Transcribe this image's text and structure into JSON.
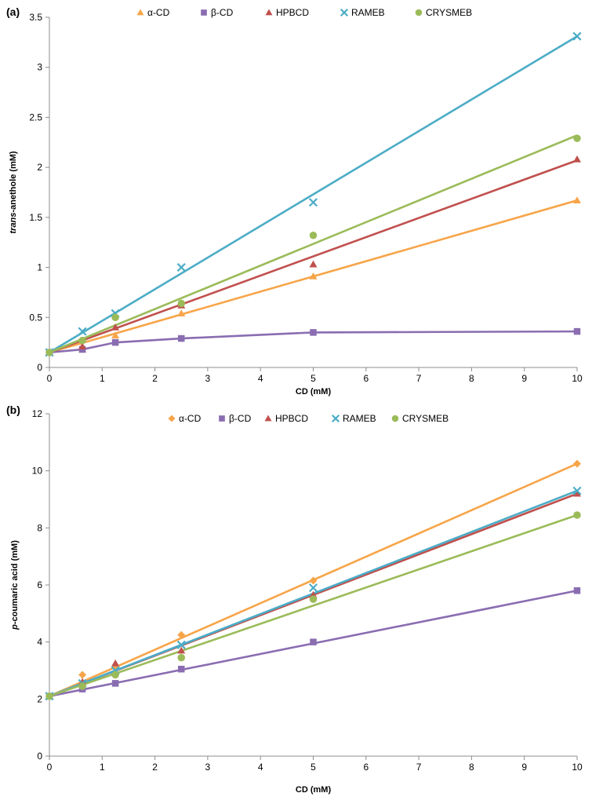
{
  "chart_data": [
    {
      "type": "scatter",
      "panel_label": "(a)",
      "xlabel": "CD (mM)",
      "ylabel_italic": "trans",
      "ylabel_rest": "-anethole (mM)",
      "xlim": [
        0,
        10
      ],
      "ylim": [
        0,
        3.5
      ],
      "xticks": [
        0,
        1,
        2,
        3,
        4,
        5,
        6,
        7,
        8,
        9,
        10
      ],
      "xtick_labels": [
        "0",
        "1",
        "2",
        "3",
        "4",
        "5",
        "6",
        "7",
        "8",
        "9",
        "10"
      ],
      "yticks": [
        0,
        0.5,
        1,
        1.5,
        2,
        2.5,
        3,
        3.5
      ],
      "ytick_labels": [
        "0",
        "0.5",
        "1",
        "1.5",
        "2",
        "2.5",
        "3",
        "3.5"
      ],
      "legend_position": "top",
      "series": [
        {
          "name": "α-CD",
          "color": "#f7a54a",
          "marker": "triangle",
          "x": [
            0,
            0.625,
            1.25,
            2.5,
            5,
            10
          ],
          "y": [
            0.15,
            0.18,
            0.32,
            0.54,
            0.91,
            1.67
          ],
          "fit": {
            "x": [
              0,
              10
            ],
            "y": [
              0.15,
              1.67
            ]
          }
        },
        {
          "name": "β-CD",
          "color": "#8a6db1",
          "marker": "square",
          "x": [
            0,
            0.625,
            1.25,
            2.5,
            5,
            10
          ],
          "y": [
            0.15,
            0.18,
            0.25,
            0.29,
            0.35,
            0.36
          ],
          "fit": {
            "x": [
              0,
              0.625,
              1.25,
              2.5,
              5,
              10
            ],
            "y": [
              0.15,
              0.18,
              0.25,
              0.29,
              0.35,
              0.36
            ]
          }
        },
        {
          "name": "HPBCD",
          "color": "#c0504d",
          "marker": "triangle",
          "x": [
            0,
            0.625,
            1.25,
            2.5,
            5,
            10
          ],
          "y": [
            0.15,
            0.21,
            0.4,
            0.62,
            1.03,
            2.08
          ],
          "fit": {
            "x": [
              0,
              10
            ],
            "y": [
              0.15,
              2.07
            ]
          }
        },
        {
          "name": "RAMEB",
          "color": "#4bacc6",
          "marker": "x",
          "x": [
            0,
            0.625,
            1.25,
            2.5,
            5,
            10
          ],
          "y": [
            0.15,
            0.36,
            0.54,
            1.0,
            1.65,
            3.31
          ],
          "fit": {
            "x": [
              0,
              10
            ],
            "y": [
              0.15,
              3.31
            ]
          }
        },
        {
          "name": "CRYSMEB",
          "color": "#9bbb59",
          "marker": "circle",
          "x": [
            0,
            0.625,
            1.25,
            2.5,
            5,
            10
          ],
          "y": [
            0.15,
            0.27,
            0.5,
            0.64,
            1.32,
            2.29
          ],
          "fit": {
            "x": [
              0,
              10
            ],
            "y": [
              0.15,
              2.32
            ]
          }
        }
      ]
    },
    {
      "type": "scatter",
      "panel_label": "(b)",
      "xlabel": "CD (mM)",
      "ylabel_italic": "p",
      "ylabel_rest": "-coumaric acid (mM)",
      "xlim": [
        0,
        10
      ],
      "ylim": [
        0,
        12
      ],
      "xticks": [
        0,
        1,
        2,
        3,
        4,
        5,
        6,
        7,
        8,
        9,
        10
      ],
      "xtick_labels": [
        "0",
        "1",
        "2",
        "3",
        "4",
        "5",
        "6",
        "7",
        "8",
        "9",
        "10"
      ],
      "yticks": [
        0,
        2,
        4,
        6,
        8,
        10,
        12
      ],
      "ytick_labels": [
        "0",
        "2",
        "4",
        "6",
        "8",
        "10",
        "12"
      ],
      "legend_position": "top",
      "series": [
        {
          "name": "α-CD",
          "color": "#f7a54a",
          "marker": "diamond",
          "x": [
            0,
            0.625,
            1.25,
            2.5,
            5,
            10
          ],
          "y": [
            2.1,
            2.85,
            3.1,
            4.25,
            6.15,
            10.25
          ],
          "fit": {
            "x": [
              0,
              10
            ],
            "y": [
              2.1,
              10.25
            ]
          }
        },
        {
          "name": "β-CD",
          "color": "#8a6db1",
          "marker": "square",
          "x": [
            0,
            0.625,
            1.25,
            2.5,
            5,
            10
          ],
          "y": [
            2.1,
            2.35,
            2.55,
            3.05,
            4.0,
            5.8
          ],
          "fit": {
            "x": [
              0,
              10
            ],
            "y": [
              2.1,
              5.8
            ]
          }
        },
        {
          "name": "HPBCD",
          "color": "#c0504d",
          "marker": "triangle",
          "x": [
            0,
            0.625,
            1.25,
            2.5,
            5,
            10
          ],
          "y": [
            2.1,
            2.6,
            3.25,
            3.7,
            5.65,
            9.2
          ],
          "fit": {
            "x": [
              0,
              10
            ],
            "y": [
              2.1,
              9.2
            ]
          }
        },
        {
          "name": "RAMEB",
          "color": "#4bacc6",
          "marker": "x",
          "x": [
            0,
            0.625,
            1.25,
            2.5,
            5,
            10
          ],
          "y": [
            2.1,
            2.55,
            3.0,
            3.9,
            5.9,
            9.3
          ],
          "fit": {
            "x": [
              0,
              10
            ],
            "y": [
              2.1,
              9.3
            ]
          }
        },
        {
          "name": "CRYSMEB",
          "color": "#9bbb59",
          "marker": "circle",
          "x": [
            0,
            0.625,
            1.25,
            2.5,
            5,
            10
          ],
          "y": [
            2.1,
            2.45,
            2.85,
            3.45,
            5.5,
            8.45
          ],
          "fit": {
            "x": [
              0,
              10
            ],
            "y": [
              2.1,
              8.45
            ]
          }
        }
      ]
    }
  ]
}
